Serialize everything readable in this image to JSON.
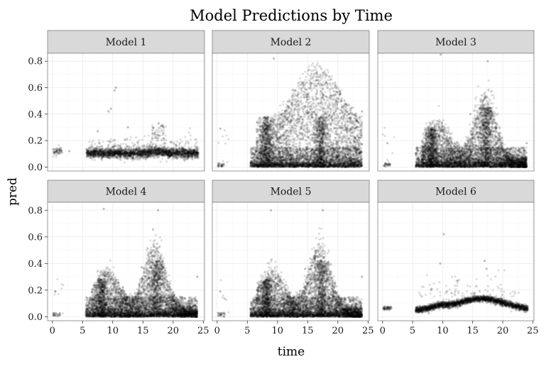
{
  "chart_data": {
    "type": "scatter",
    "title": "Model Predictions by Time",
    "xlabel": "time",
    "ylabel": "pred",
    "xlim": [
      -0.8,
      25.2
    ],
    "ylim": [
      -0.03,
      0.86
    ],
    "x_ticks": [
      0,
      5,
      10,
      15,
      20,
      25
    ],
    "y_ticks": [
      0.0,
      0.2,
      0.4,
      0.6,
      0.8
    ],
    "x_tick_labels": [
      "0",
      "5",
      "10",
      "15",
      "20",
      "25"
    ],
    "y_tick_labels": [
      "0.0",
      "0.2",
      "0.4",
      "0.6",
      "0.8"
    ],
    "grid": true,
    "facet_layout": {
      "rows": 2,
      "cols": 3
    },
    "point_color": "#000000",
    "point_alpha": 0.12,
    "panels": [
      {
        "label": "Model 1",
        "description_points": "sparse cluster near time 0-1 at ~0.12; dense band 5.5-24 centered 0.10; outliers up to 0.6 near time 10; bump to ~0.32 at time 18",
        "sample_points": [
          {
            "x": 0.3,
            "y": 0.11
          },
          {
            "x": 0.8,
            "y": 0.13
          },
          {
            "x": 1.2,
            "y": 0.14
          },
          {
            "x": 2.8,
            "y": 0.12
          },
          {
            "x": 9.7,
            "y": 0.44
          },
          {
            "x": 10.5,
            "y": 0.6
          },
          {
            "x": 10.3,
            "y": 0.58
          },
          {
            "x": 9.3,
            "y": 0.42
          },
          {
            "x": 17.6,
            "y": 0.33
          },
          {
            "x": 18.0,
            "y": 0.31
          },
          {
            "x": 12.5,
            "y": 0.3
          },
          {
            "x": 7.5,
            "y": 0.27
          }
        ]
      },
      {
        "label": "Model 2",
        "description_points": "scatter 0-24; dense floor near 0.0-0.05; peaks ~0.35 at times 8 and 17; points up to 0.8",
        "sample_points": [
          {
            "x": 0.2,
            "y": 0.01
          },
          {
            "x": 1.0,
            "y": 0.02
          },
          {
            "x": 0.5,
            "y": 0.29
          },
          {
            "x": 9.4,
            "y": 0.82
          },
          {
            "x": 16.5,
            "y": 0.71
          },
          {
            "x": 24.0,
            "y": 0.42
          },
          {
            "x": 13.9,
            "y": 0.38
          },
          {
            "x": 14.2,
            "y": 0.36
          }
        ]
      },
      {
        "label": "Model 3",
        "description_points": "scatter 0-24; dense floor; arc from time 6 to 24 peaking ~0.55 at time 17; points up to 0.85",
        "sample_points": [
          {
            "x": 0.3,
            "y": 0.01
          },
          {
            "x": 1.2,
            "y": 0.02
          },
          {
            "x": 0.8,
            "y": 0.18
          },
          {
            "x": 9.7,
            "y": 0.85
          },
          {
            "x": 17.5,
            "y": 0.8
          },
          {
            "x": 24.0,
            "y": 0.18
          },
          {
            "x": 14.6,
            "y": 0.4
          }
        ]
      },
      {
        "label": "Model 4",
        "description_points": "scatter 0-24; dense floor 0-0.1; peaks ~0.25 at time 8 and ~0.4 at time 17; points up to 0.8",
        "sample_points": [
          {
            "x": 0.2,
            "y": 0.01
          },
          {
            "x": 0.5,
            "y": 0.19
          },
          {
            "x": 8.5,
            "y": 0.81
          },
          {
            "x": 17.5,
            "y": 0.8
          },
          {
            "x": 14.8,
            "y": 0.37
          },
          {
            "x": 24.0,
            "y": 0.3
          }
        ]
      },
      {
        "label": "Model 5",
        "description_points": "scatter 0-24; dense floor 0-0.1; peaks ~0.25 at time 8 and ~0.4 at time 17; points up to 0.8",
        "sample_points": [
          {
            "x": 0.2,
            "y": 0.01
          },
          {
            "x": 0.5,
            "y": 0.19
          },
          {
            "x": 8.9,
            "y": 0.8
          },
          {
            "x": 17.5,
            "y": 0.8
          },
          {
            "x": 14.6,
            "y": 0.36
          },
          {
            "x": 24.0,
            "y": 0.3
          }
        ]
      },
      {
        "label": "Model 6",
        "description_points": "cluster ~0.06 at time 0-1; smooth arc 5-24 from 0.05 up to ~0.13 at time 17 and back to 0.05; outliers up to 0.62 near time 10",
        "sample_points": [
          {
            "x": 0.2,
            "y": 0.06
          },
          {
            "x": 0.9,
            "y": 0.07
          },
          {
            "x": 10.2,
            "y": 0.62
          },
          {
            "x": 9.6,
            "y": 0.4
          },
          {
            "x": 17.0,
            "y": 0.42
          },
          {
            "x": 17.3,
            "y": 0.36
          },
          {
            "x": 12.5,
            "y": 0.27
          }
        ]
      }
    ]
  },
  "colors": {
    "strip_fill": "#d9d9d9",
    "strip_border": "#7f7f7f",
    "panel_border": "#7f7f7f",
    "grid_major": "#ebebeb",
    "grid_minor": "#f5f5f5",
    "point": "#000000"
  }
}
